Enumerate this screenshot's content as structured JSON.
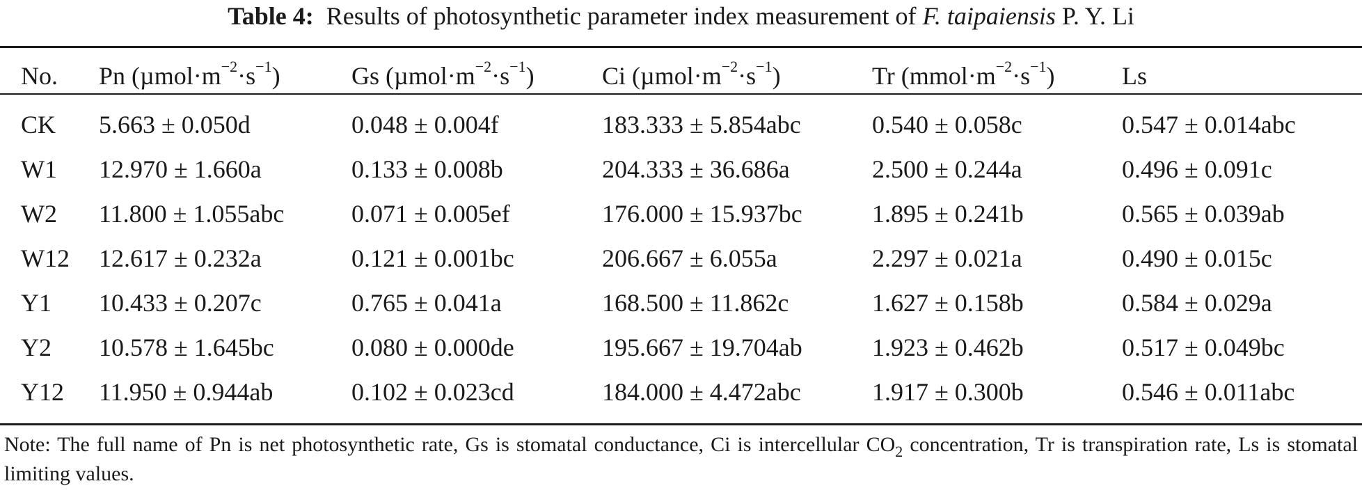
{
  "caption": {
    "label": "Table 4:",
    "text_before": "Results of photosynthetic parameter index measurement of",
    "species_italic": "F. taipaiensis",
    "species_author": "P. Y. Li"
  },
  "table": {
    "headers": [
      {
        "base": "No.",
        "unit_pre": "",
        "exp": "",
        "unit_mid": "",
        "exp2": "",
        "unit_post": ""
      },
      {
        "base": "Pn (µmol·m",
        "exp": "−2",
        "unit_mid": "·s",
        "exp2": "−1",
        "unit_post": ")"
      },
      {
        "base": "Gs (µmol·m",
        "exp": "−2",
        "unit_mid": "·s",
        "exp2": "−1",
        "unit_post": ")"
      },
      {
        "base": "Ci (µmol·m",
        "exp": "−2",
        "unit_mid": "·s",
        "exp2": "−1",
        "unit_post": ")"
      },
      {
        "base": "Tr (mmol·m",
        "exp": "−2",
        "unit_mid": "·s",
        "exp2": "−1",
        "unit_post": ")"
      },
      {
        "base": "Ls",
        "exp": "",
        "unit_mid": "",
        "exp2": "",
        "unit_post": ""
      }
    ],
    "rows": [
      [
        "CK",
        "5.663 ± 0.050d",
        "0.048 ± 0.004f",
        "183.333 ± 5.854abc",
        "0.540 ± 0.058c",
        "0.547 ± 0.014abc"
      ],
      [
        "W1",
        "12.970 ± 1.660a",
        "0.133 ± 0.008b",
        "204.333 ± 36.686a",
        "2.500 ± 0.244a",
        "0.496 ± 0.091c"
      ],
      [
        "W2",
        "11.800 ± 1.055abc",
        "0.071 ± 0.005ef",
        "176.000 ± 15.937bc",
        "1.895 ± 0.241b",
        "0.565 ± 0.039ab"
      ],
      [
        "W12",
        "12.617 ± 0.232a",
        "0.121 ± 0.001bc",
        "206.667 ± 6.055a",
        "2.297 ± 0.021a",
        "0.490 ± 0.015c"
      ],
      [
        "Y1",
        "10.433 ± 0.207c",
        "0.765 ± 0.041a",
        "168.500 ± 11.862c",
        "1.627 ± 0.158b",
        "0.584 ± 0.029a"
      ],
      [
        "Y2",
        "10.578 ± 1.645bc",
        "0.080 ± 0.000de",
        "195.667 ± 19.704ab",
        "1.923 ± 0.462b",
        "0.517 ± 0.049bc"
      ],
      [
        "Y12",
        "11.950 ± 0.944ab",
        "0.102 ± 0.023cd",
        "184.000 ± 4.472abc",
        "1.917 ± 0.300b",
        "0.546 ± 0.011abc"
      ]
    ]
  },
  "note": {
    "before_sub": "Note: The full name of Pn is net photosynthetic rate, Gs is stomatal conductance, Ci is intercellular CO",
    "sub": "2",
    "after_sub": " concentration, Tr is transpiration rate, Ls is stomatal limiting values."
  }
}
